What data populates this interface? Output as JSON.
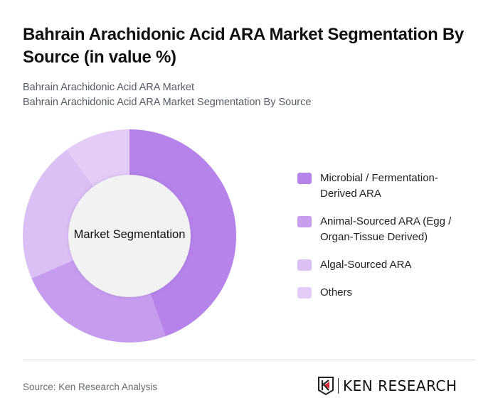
{
  "header": {
    "title": "Bahrain Arachidonic Acid ARA Market Segmentation By Source (in value %)",
    "subtitle_line1": "Bahrain Arachidonic Acid ARA Market",
    "subtitle_line2": "Bahrain Arachidonic Acid ARA Market Segmentation By Source"
  },
  "chart": {
    "center_label": "Market Segmentation"
  },
  "legend": [
    {
      "label": "Microbial / Fermentation-Derived ARA",
      "color": "#b583ea"
    },
    {
      "label": "Animal-Sourced ARA (Egg / Organ-Tissue Derived)",
      "color": "#c69dee"
    },
    {
      "label": "Algal-Sourced ARA",
      "color": "#dbc0f5"
    },
    {
      "label": "Others",
      "color": "#e3cdf7"
    }
  ],
  "footer": {
    "source": "Source: Ken Research Analysis",
    "logo_text": "KEN RESEARCH"
  },
  "chart_data": {
    "type": "pie",
    "title": "Bahrain Arachidonic Acid ARA Market Segmentation By Source (in value %)",
    "subtitle": "Bahrain Arachidonic Acid ARA Market Segmentation By Source",
    "center_label": "Market Segmentation",
    "donut": true,
    "categories": [
      "Microbial / Fermentation-Derived ARA",
      "Animal-Sourced ARA (Egg / Organ-Tissue Derived)",
      "Algal-Sourced ARA",
      "Others"
    ],
    "values": [
      44.5,
      24,
      21.5,
      10
    ],
    "colors": [
      "#b583ea",
      "#c69dee",
      "#dbc0f5",
      "#e3cdf7"
    ],
    "legend_position": "right",
    "start_angle_deg": 0,
    "direction": "clockwise"
  }
}
